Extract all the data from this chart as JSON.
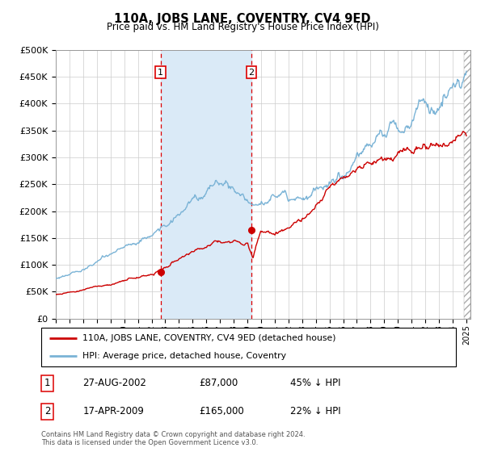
{
  "title": "110A, JOBS LANE, COVENTRY, CV4 9ED",
  "subtitle": "Price paid vs. HM Land Registry's House Price Index (HPI)",
  "ylim": [
    0,
    500000
  ],
  "yticks": [
    0,
    50000,
    100000,
    150000,
    200000,
    250000,
    300000,
    350000,
    400000,
    450000,
    500000
  ],
  "ytick_labels": [
    "£0",
    "£50K",
    "£100K",
    "£150K",
    "£200K",
    "£250K",
    "£300K",
    "£350K",
    "£400K",
    "£450K",
    "£500K"
  ],
  "x_start_year": 1995,
  "x_end_year": 2025,
  "transaction1_price": 87000,
  "transaction1_x": 2002.65,
  "transaction2_price": 165000,
  "transaction2_x": 2009.29,
  "hpi_color": "#7ab3d6",
  "price_color": "#cc0000",
  "vline_color": "#dd0000",
  "shade_color": "#daeaf7",
  "legend_label_price": "110A, JOBS LANE, COVENTRY, CV4 9ED (detached house)",
  "legend_label_hpi": "HPI: Average price, detached house, Coventry",
  "footer_line1": "Contains HM Land Registry data © Crown copyright and database right 2024.",
  "footer_line2": "This data is licensed under the Open Government Licence v3.0.",
  "table_rows": [
    [
      "1",
      "27-AUG-2002",
      "£87,000",
      "45% ↓ HPI"
    ],
    [
      "2",
      "17-APR-2009",
      "£165,000",
      "22% ↓ HPI"
    ]
  ]
}
